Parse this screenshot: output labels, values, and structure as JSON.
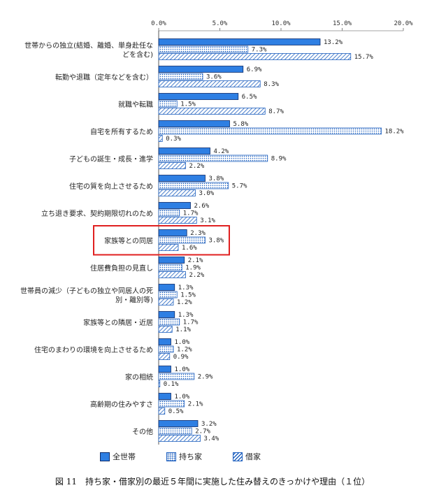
{
  "chart_data": {
    "type": "bar",
    "orientation": "horizontal",
    "caption": "図 11　持ち家・借家別の最近５年間に実施した住み替えのきっかけや理由（１位）",
    "xlim": [
      0,
      20
    ],
    "x_ticks": [
      "0.0%",
      "5.0%",
      "10.0%",
      "15.0%",
      "20.0%"
    ],
    "legend_position": "bottom",
    "categories": [
      [
        "世帯からの独立(結婚、離婚、単身赴任な",
        "どを含む)"
      ],
      [
        "転勤や退職（定年などを含む）"
      ],
      [
        "就職や転職"
      ],
      [
        "自宅を所有するため"
      ],
      [
        "子どもの誕生・成長・進学"
      ],
      [
        "住宅の質を向上させるため"
      ],
      [
        "立ち退き要求、契約期限切れのため"
      ],
      [
        "家族等との同居"
      ],
      [
        "住居費負担の見直し"
      ],
      [
        "世帯員の減少（子どもの独立や同居人の死",
        "別・離別等)"
      ],
      [
        "家族等との隣居・近居"
      ],
      [
        "住宅のまわりの環境を向上させるため"
      ],
      [
        "家の相続"
      ],
      [
        "高齢期の住みやすさ"
      ],
      [
        "その他"
      ]
    ],
    "series": [
      {
        "name": "全世帯",
        "color": "#2e7fe3",
        "pattern": "solid",
        "values": [
          13.2,
          6.9,
          6.5,
          5.8,
          4.2,
          3.8,
          2.6,
          2.3,
          2.1,
          1.3,
          1.3,
          1.0,
          1.0,
          1.0,
          3.2
        ],
        "labels": [
          "13.2%",
          "6.9%",
          "6.5%",
          "5.8%",
          "4.2%",
          "3.8%",
          "2.6%",
          "2.3%",
          "2.1%",
          "1.3%",
          "1.3%",
          "1.0%",
          "1.0%",
          "1.0%",
          "3.2%"
        ]
      },
      {
        "name": "持ち家",
        "color": "#1d5fbf",
        "pattern": "dots",
        "values": [
          7.3,
          3.6,
          1.5,
          18.2,
          8.9,
          5.7,
          1.7,
          3.8,
          1.9,
          1.5,
          1.7,
          1.2,
          2.9,
          2.1,
          2.7
        ],
        "labels": [
          "7.3%",
          "3.6%",
          "1.5%",
          "18.2%",
          "8.9%",
          "5.7%",
          "1.7%",
          "3.8%",
          "1.9%",
          "1.5%",
          "1.7%",
          "1.2%",
          "2.9%",
          "2.1%",
          "2.7%"
        ]
      },
      {
        "name": "借家",
        "color": "#1d5fbf",
        "pattern": "diagonal",
        "values": [
          15.7,
          8.3,
          8.7,
          0.3,
          2.2,
          3.0,
          3.1,
          1.6,
          2.2,
          1.2,
          1.1,
          0.9,
          0.1,
          0.5,
          3.4
        ],
        "labels": [
          "15.7%",
          "8.3%",
          "8.7%",
          "0.3%",
          "2.2%",
          "3.0%",
          "3.1%",
          "1.6%",
          "2.2%",
          "1.2%",
          "1.1%",
          "0.9%",
          "0.1%",
          "0.5%",
          "3.4%"
        ]
      }
    ],
    "highlight": {
      "category_index": 7,
      "color": "#e02020"
    }
  },
  "legend": {
    "all": "全世帯",
    "own": "持ち家",
    "rent": "借家"
  },
  "caption": "図 11　持ち家・借家別の最近５年間に実施した住み替えのきっかけや理由（１位）"
}
